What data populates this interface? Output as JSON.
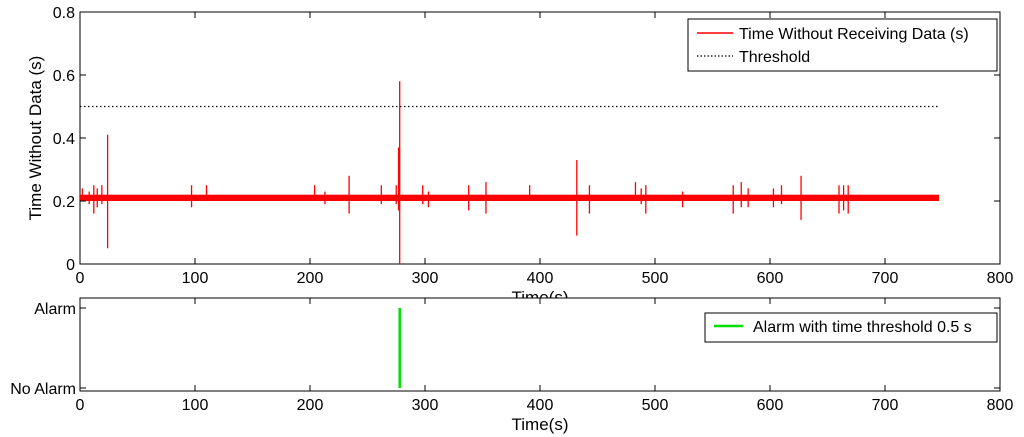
{
  "chart_data": [
    {
      "type": "line",
      "xlabel": "Time(s)",
      "ylabel": "Time Without Data (s)",
      "xlim": [
        0,
        800
      ],
      "ylim": [
        0,
        0.8
      ],
      "xticks": [
        0,
        100,
        200,
        300,
        400,
        500,
        600,
        700,
        800
      ],
      "yticks": [
        0,
        0.2,
        0.4,
        0.6,
        0.8
      ],
      "ytick_labels": [
        "0",
        "0.2",
        "0.4",
        "0.6",
        "0.8"
      ],
      "grid": false,
      "legend_position": "top-right",
      "baseline": {
        "x_range": [
          0,
          747
        ],
        "y": 0.21,
        "band": [
          0.2,
          0.22
        ]
      },
      "series": [
        {
          "name": "Time Without Receiving Data (s)",
          "color": "#ff0000",
          "style": "solid",
          "spikes": [
            {
              "x": 2,
              "high": 0.24,
              "low": 0.2
            },
            {
              "x": 8,
              "high": 0.23,
              "low": 0.19
            },
            {
              "x": 12,
              "high": 0.25,
              "low": 0.16
            },
            {
              "x": 15,
              "high": 0.24,
              "low": 0.18
            },
            {
              "x": 19,
              "high": 0.25,
              "low": 0.19
            },
            {
              "x": 24,
              "high": 0.41,
              "low": 0.05
            },
            {
              "x": 97,
              "high": 0.25,
              "low": 0.18
            },
            {
              "x": 110,
              "high": 0.25,
              "low": 0.2
            },
            {
              "x": 204,
              "high": 0.25,
              "low": 0.2
            },
            {
              "x": 213,
              "high": 0.23,
              "low": 0.19
            },
            {
              "x": 234,
              "high": 0.28,
              "low": 0.16
            },
            {
              "x": 262,
              "high": 0.25,
              "low": 0.19
            },
            {
              "x": 275,
              "high": 0.25,
              "low": 0.19
            },
            {
              "x": 278,
              "high": 0.58,
              "low": 0.0
            },
            {
              "x": 277,
              "high": 0.37,
              "low": 0.17
            },
            {
              "x": 298,
              "high": 0.25,
              "low": 0.19
            },
            {
              "x": 303,
              "high": 0.23,
              "low": 0.18
            },
            {
              "x": 338,
              "high": 0.25,
              "low": 0.17
            },
            {
              "x": 353,
              "high": 0.26,
              "low": 0.16
            },
            {
              "x": 391,
              "high": 0.25,
              "low": 0.2
            },
            {
              "x": 432,
              "high": 0.33,
              "low": 0.09
            },
            {
              "x": 443,
              "high": 0.25,
              "low": 0.16
            },
            {
              "x": 483,
              "high": 0.26,
              "low": 0.2
            },
            {
              "x": 488,
              "high": 0.24,
              "low": 0.19
            },
            {
              "x": 492,
              "high": 0.25,
              "low": 0.16
            },
            {
              "x": 524,
              "high": 0.23,
              "low": 0.18
            },
            {
              "x": 568,
              "high": 0.25,
              "low": 0.16
            },
            {
              "x": 575,
              "high": 0.26,
              "low": 0.18
            },
            {
              "x": 581,
              "high": 0.24,
              "low": 0.18
            },
            {
              "x": 603,
              "high": 0.24,
              "low": 0.18
            },
            {
              "x": 610,
              "high": 0.25,
              "low": 0.19
            },
            {
              "x": 627,
              "high": 0.28,
              "low": 0.14
            },
            {
              "x": 660,
              "high": 0.25,
              "low": 0.16
            },
            {
              "x": 664,
              "high": 0.25,
              "low": 0.17
            },
            {
              "x": 668,
              "high": 0.25,
              "low": 0.16
            }
          ]
        },
        {
          "name": "Threshold",
          "color": "#000000",
          "style": "dotted",
          "x": [
            0,
            747
          ],
          "y": [
            0.5,
            0.5
          ]
        }
      ]
    },
    {
      "type": "line",
      "xlabel": "Time(s)",
      "ylabel": "",
      "xlim": [
        0,
        800
      ],
      "xticks": [
        0,
        100,
        200,
        300,
        400,
        500,
        600,
        700,
        800
      ],
      "ylim": [
        0,
        1
      ],
      "yticks": [
        0,
        1
      ],
      "ytick_labels": [
        "No Alarm",
        "Alarm"
      ],
      "grid": false,
      "legend_position": "top-right",
      "series": [
        {
          "name": "Alarm with time threshold 0.5 s",
          "color": "#00dd00",
          "style": "solid",
          "x": [
            278,
            278
          ],
          "y": [
            0,
            1
          ]
        }
      ]
    }
  ]
}
